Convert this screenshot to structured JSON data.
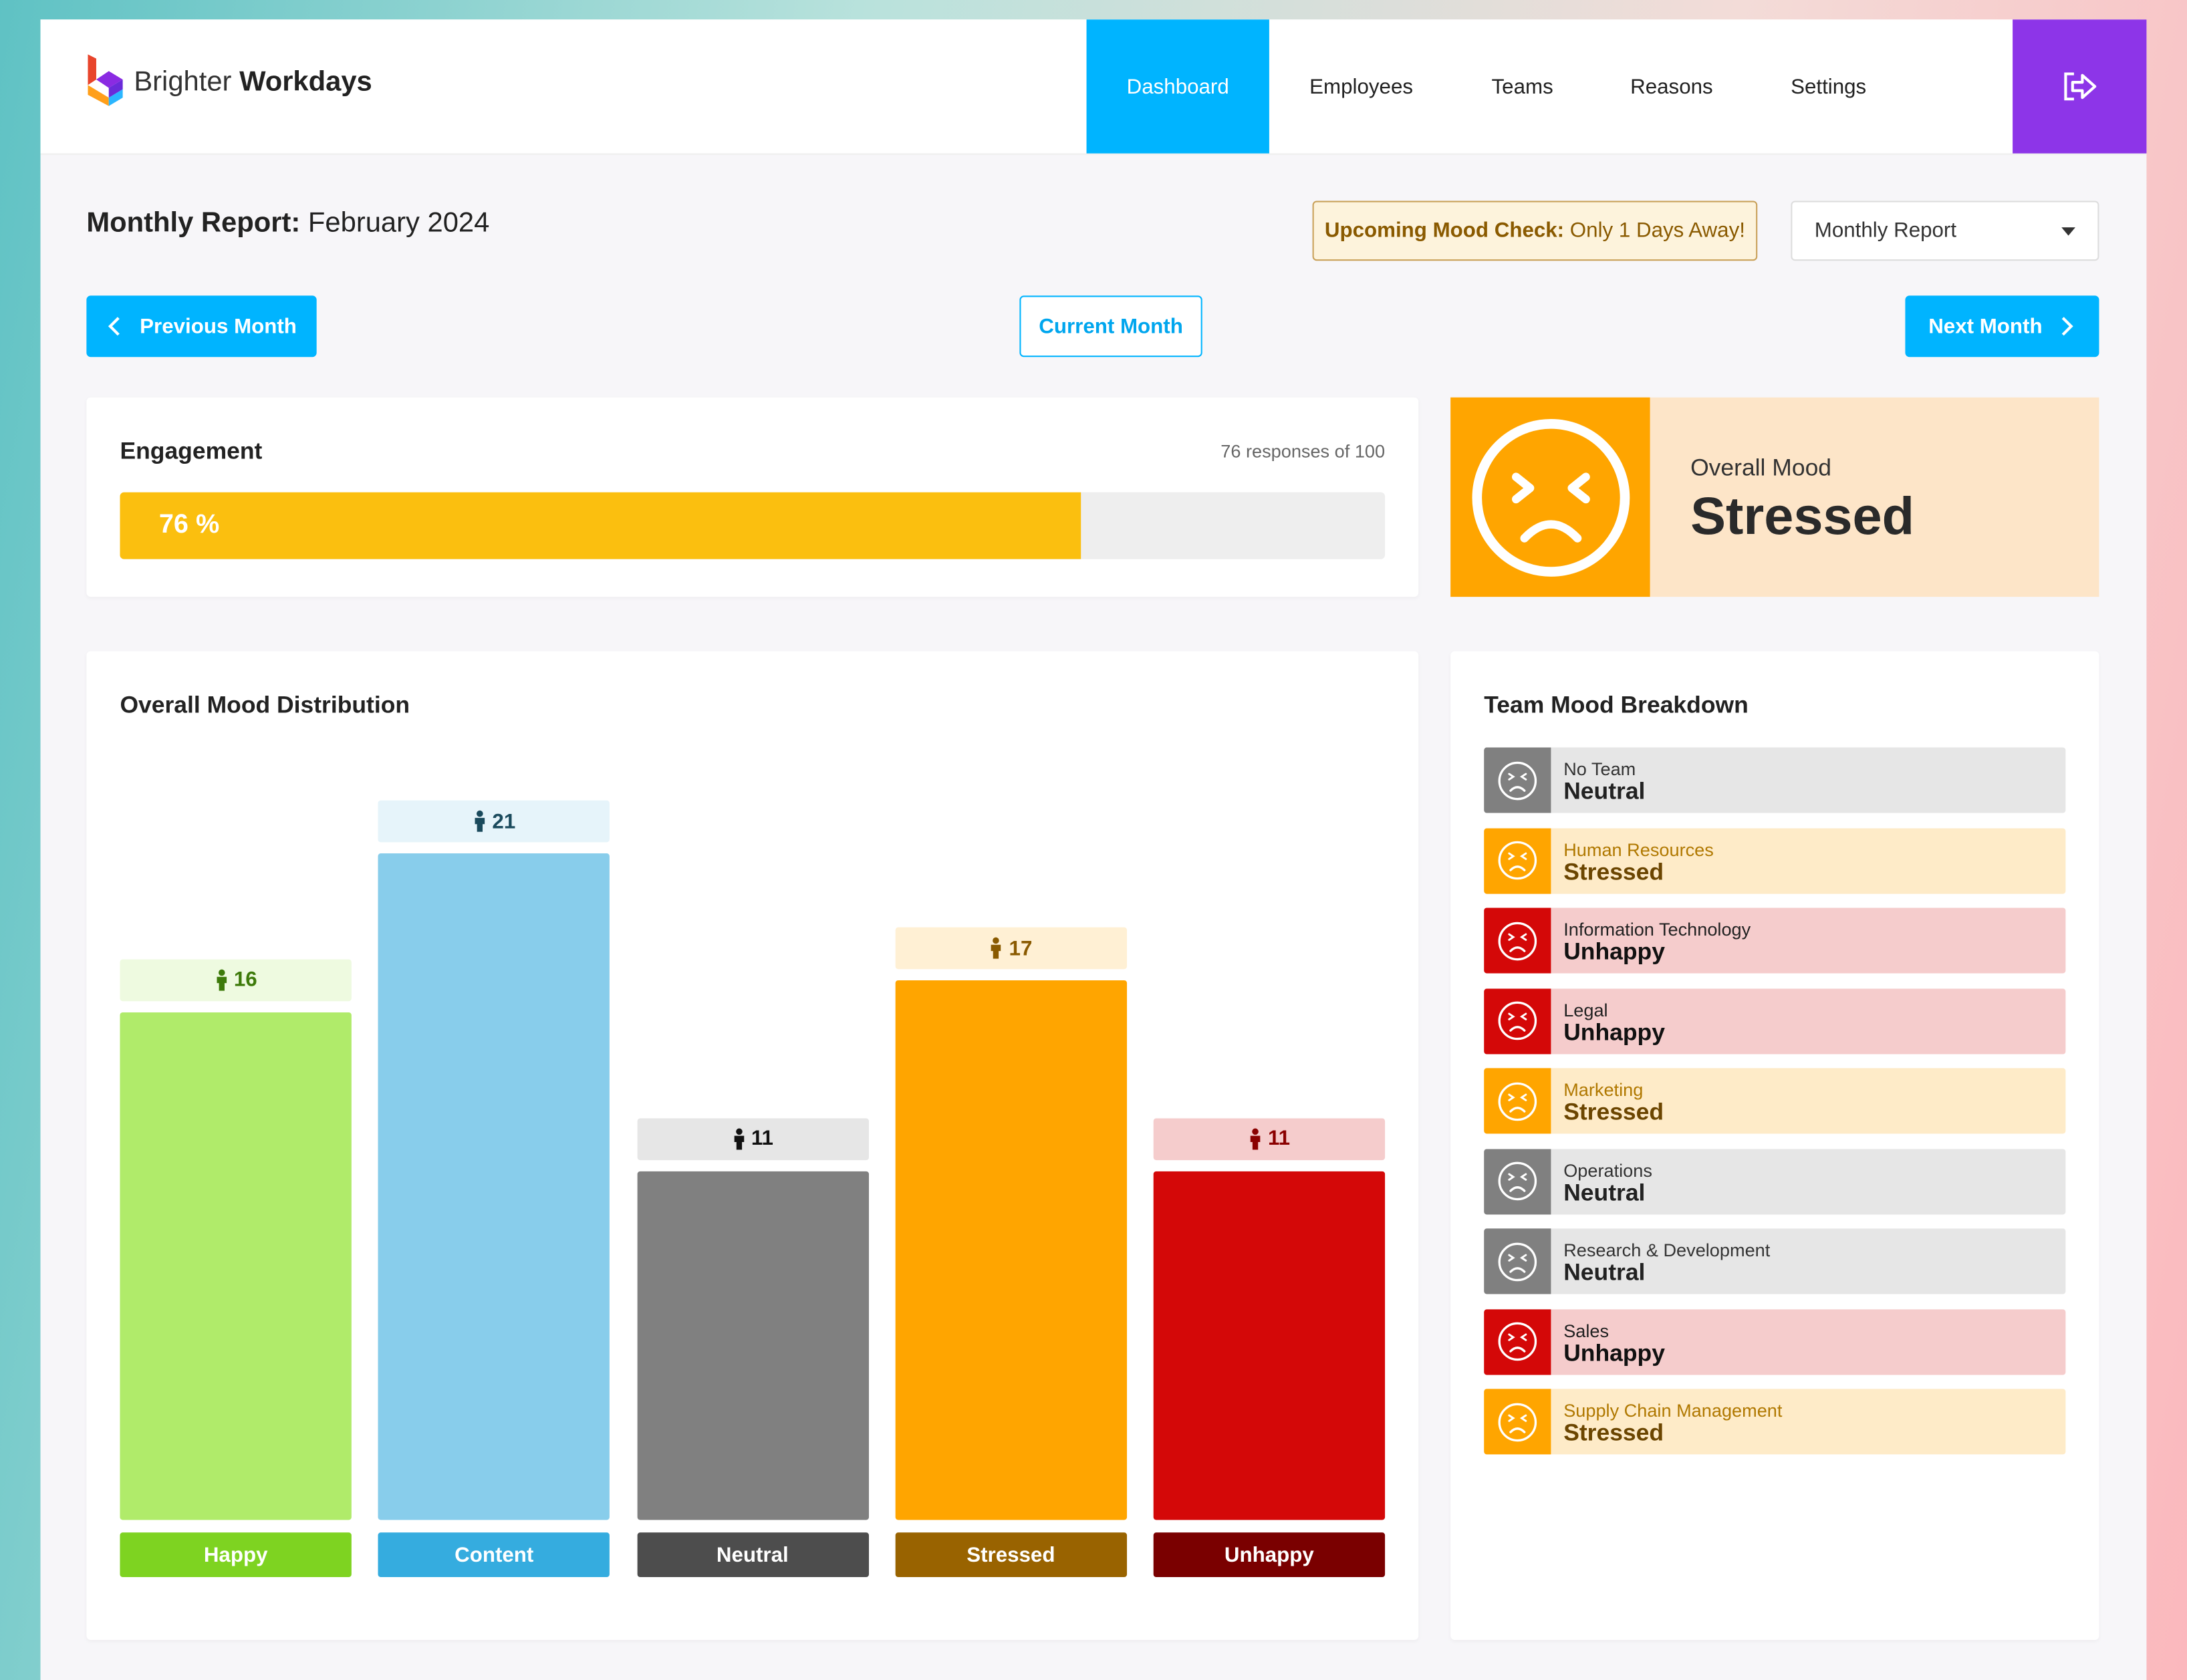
{
  "brand": {
    "light": "Brighter",
    "bold": "Workdays"
  },
  "nav": [
    "Dashboard",
    "Employees",
    "Teams",
    "Reasons",
    "Settings"
  ],
  "report": {
    "label": "Monthly Report:",
    "period": "February 2024"
  },
  "notice": {
    "label": "Upcoming Mood Check:",
    "text": "Only 1 Days Away!"
  },
  "report_select": "Monthly Report",
  "buttons": {
    "previous": "Previous Month",
    "current": "Current Month",
    "next": "Next Month"
  },
  "engagement": {
    "title": "Engagement",
    "responses_text": "76 responses of 100",
    "value": 76,
    "total": 100,
    "value_label": "76 %"
  },
  "overall_mood": {
    "label": "Overall Mood",
    "value": "Stressed"
  },
  "chart_data": {
    "type": "bar",
    "title": "Overall Mood Distribution",
    "categories": [
      "Happy",
      "Content",
      "Neutral",
      "Stressed",
      "Unhappy"
    ],
    "values": [
      16,
      21,
      11,
      17,
      11
    ],
    "colors": [
      "#b0eb6a",
      "#88cdeb",
      "#808080",
      "#ffa500",
      "#d40808"
    ],
    "label_colors": [
      "#7ed321",
      "#35acdf",
      "#4d4d4d",
      "#996300",
      "#7a0000"
    ],
    "badge_colors": [
      "#eefae0",
      "#e6f4fa",
      "#e6e6e6",
      "#fff0d4",
      "#f5cccc"
    ],
    "badge_text_colors": [
      "#3d7a0a",
      "#1a4a5c",
      "#111111",
      "#8a5a00",
      "#8a0000"
    ]
  },
  "team_breakdown": {
    "title": "Team Mood Breakdown",
    "teams": [
      {
        "name": "No Team",
        "mood": "Neutral",
        "icon_color": "#808080",
        "bg_color": "#e6e6e6",
        "name_color": "#333333",
        "mood_color": "#222222"
      },
      {
        "name": "Human Resources",
        "mood": "Stressed",
        "icon_color": "#ffa500",
        "bg_color": "#feebc8",
        "name_color": "#b07800",
        "mood_color": "#6b4500"
      },
      {
        "name": "Information Technology",
        "mood": "Unhappy",
        "icon_color": "#d40808",
        "bg_color": "#f5cccc",
        "name_color": "#222222",
        "mood_color": "#111111"
      },
      {
        "name": "Legal",
        "mood": "Unhappy",
        "icon_color": "#d40808",
        "bg_color": "#f5cccc",
        "name_color": "#222222",
        "mood_color": "#111111"
      },
      {
        "name": "Marketing",
        "mood": "Stressed",
        "icon_color": "#ffa500",
        "bg_color": "#feebc8",
        "name_color": "#b07800",
        "mood_color": "#6b4500"
      },
      {
        "name": "Operations",
        "mood": "Neutral",
        "icon_color": "#808080",
        "bg_color": "#e6e6e6",
        "name_color": "#333333",
        "mood_color": "#222222"
      },
      {
        "name": "Research & Development",
        "mood": "Neutral",
        "icon_color": "#808080",
        "bg_color": "#e6e6e6",
        "name_color": "#333333",
        "mood_color": "#222222"
      },
      {
        "name": "Sales",
        "mood": "Unhappy",
        "icon_color": "#d40808",
        "bg_color": "#f5cccc",
        "name_color": "#222222",
        "mood_color": "#111111"
      },
      {
        "name": "Supply Chain Management",
        "mood": "Stressed",
        "icon_color": "#ffa500",
        "bg_color": "#feebc8",
        "name_color": "#b07800",
        "mood_color": "#6b4500"
      }
    ]
  }
}
